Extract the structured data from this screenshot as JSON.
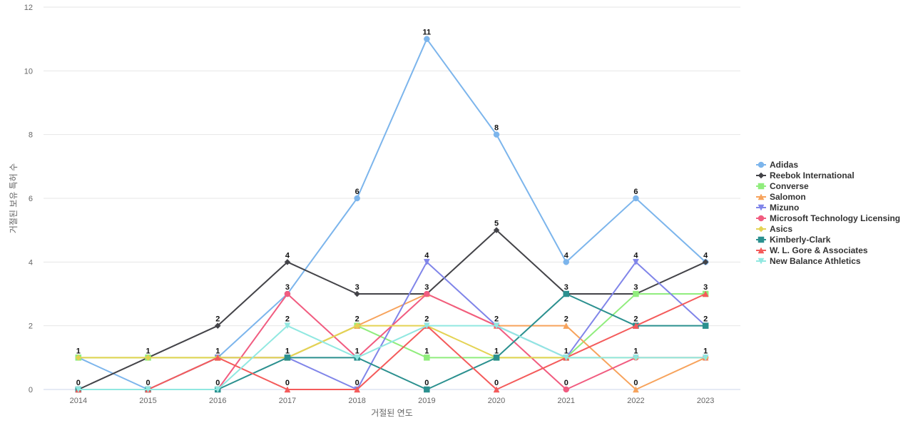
{
  "chart_data": {
    "type": "line",
    "title": "",
    "xlabel": "거절된 연도",
    "ylabel": "거절된 보유 특허 수",
    "ylim": [
      0,
      12
    ],
    "yticks": [
      0,
      2,
      4,
      6,
      8,
      10,
      12
    ],
    "grid": true,
    "legend_position": "right",
    "data_labels": true,
    "x": [
      "2014",
      "2015",
      "2016",
      "2017",
      "2018",
      "2019",
      "2020",
      "2021",
      "2022",
      "2023"
    ],
    "series": [
      {
        "name": "Adidas",
        "color": "#7cb5ec",
        "marker": "circle",
        "values": [
          1,
          0,
          1,
          3,
          6,
          11,
          8,
          4,
          6,
          4
        ]
      },
      {
        "name": "Reebok International",
        "color": "#434348",
        "marker": "diamond",
        "values": [
          0,
          1,
          2,
          4,
          3,
          3,
          5,
          3,
          3,
          4
        ]
      },
      {
        "name": "Converse",
        "color": "#90ed7d",
        "marker": "square",
        "values": [
          1,
          1,
          1,
          1,
          2,
          1,
          1,
          1,
          3,
          3
        ]
      },
      {
        "name": "Salomon",
        "color": "#f7a35c",
        "marker": "triangle",
        "values": [
          0,
          0,
          1,
          1,
          2,
          3,
          2,
          2,
          0,
          1
        ]
      },
      {
        "name": "Mizuno",
        "color": "#8085e9",
        "marker": "triangle-down",
        "values": [
          0,
          0,
          1,
          1,
          0,
          4,
          2,
          1,
          4,
          2
        ]
      },
      {
        "name": "Microsoft Technology Licensing",
        "color": "#f15c80",
        "marker": "circle",
        "values": [
          0,
          0,
          0,
          3,
          1,
          3,
          2,
          0,
          1,
          1
        ]
      },
      {
        "name": "Asics",
        "color": "#e4d354",
        "marker": "diamond",
        "values": [
          1,
          1,
          1,
          1,
          2,
          2,
          1,
          1,
          1,
          1
        ]
      },
      {
        "name": "Kimberly-Clark",
        "color": "#2b908f",
        "marker": "square",
        "values": [
          0,
          0,
          0,
          1,
          1,
          0,
          1,
          3,
          2,
          2
        ]
      },
      {
        "name": "W. L. Gore & Associates",
        "color": "#f45b5b",
        "marker": "triangle",
        "values": [
          0,
          0,
          1,
          0,
          0,
          2,
          0,
          1,
          2,
          3
        ]
      },
      {
        "name": "New Balance Athletics",
        "color": "#91e8e1",
        "marker": "triangle-down",
        "values": [
          0,
          0,
          0,
          2,
          1,
          2,
          2,
          1,
          1,
          1
        ]
      }
    ],
    "annotations": [
      {
        "x": "2014",
        "top": 1,
        "bottom": 0
      },
      {
        "x": "2015",
        "top": 1,
        "bottom": 0
      },
      {
        "x": "2016",
        "top": 2,
        "mid": 1,
        "bottom": 0
      },
      {
        "x": "2017",
        "top": 4,
        "upper": 3,
        "mid2": 2,
        "mid": 1,
        "bottom": 0
      },
      {
        "x": "2018",
        "top": 6,
        "upper": 3,
        "mid2": 2,
        "mid": 1,
        "bottom": 0
      },
      {
        "x": "2019",
        "top": 11,
        "upper2": 4,
        "upper": 3,
        "mid2": 2,
        "mid": 1,
        "bottom": 0
      },
      {
        "x": "2020",
        "top": 8,
        "upper2": 5,
        "mid2": 2,
        "mid": 1,
        "bottom": 0
      },
      {
        "x": "2021",
        "upper2": 4,
        "upper": 3,
        "mid2": 2,
        "mid": 1,
        "bottom": 0
      },
      {
        "x": "2022",
        "top": 6,
        "upper2": 4,
        "upper": 3,
        "mid2": 2,
        "mid": 1,
        "bottom": 0
      },
      {
        "x": "2023",
        "upper2": 4,
        "upper": 3,
        "mid2": 2,
        "mid": 1
      }
    ]
  }
}
